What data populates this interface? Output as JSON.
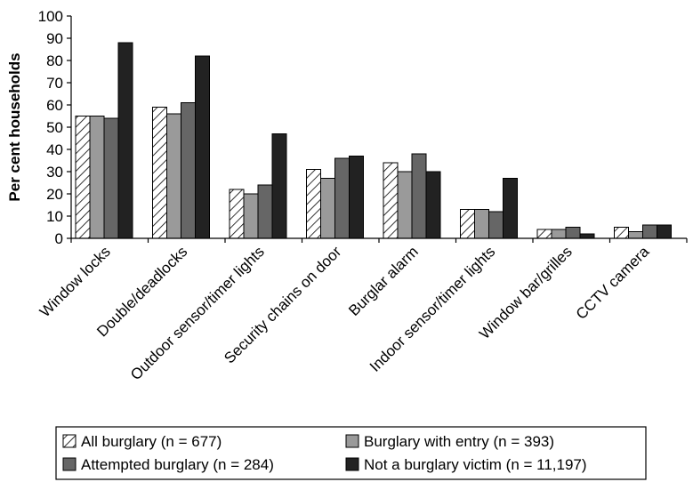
{
  "chart_data": {
    "type": "bar",
    "ylabel": "Per cent households",
    "xlabel": "",
    "ylim": [
      0,
      100
    ],
    "yticks": [
      0,
      10,
      20,
      30,
      40,
      50,
      60,
      70,
      80,
      90,
      100
    ],
    "grid": false,
    "legend_position": "bottom",
    "categories": [
      "Window locks",
      "Double/deadlocks",
      "Outdoor sensor/timer lights",
      "Security chains on door",
      "Burglar alarm",
      "Indoor sensor/timer lights",
      "Window bar/grilles",
      "CCTV camera"
    ],
    "series": [
      {
        "name": "All burglary (n = 677)",
        "pattern": "hatched",
        "color": "#ffffff",
        "values": [
          55,
          59,
          22,
          31,
          34,
          13,
          4,
          5
        ]
      },
      {
        "name": "Burglary with entry (n = 393)",
        "pattern": "solid",
        "color": "#9a9a9a",
        "values": [
          55,
          56,
          20,
          27,
          30,
          13,
          4,
          3
        ]
      },
      {
        "name": "Attempted burglary (n = 284)",
        "pattern": "solid",
        "color": "#666666",
        "values": [
          54,
          61,
          24,
          36,
          38,
          12,
          5,
          6
        ]
      },
      {
        "name": "Not a burglary victim (n = 11,197)",
        "pattern": "solid",
        "color": "#222222",
        "values": [
          88,
          82,
          47,
          37,
          30,
          27,
          2,
          6
        ]
      }
    ]
  }
}
